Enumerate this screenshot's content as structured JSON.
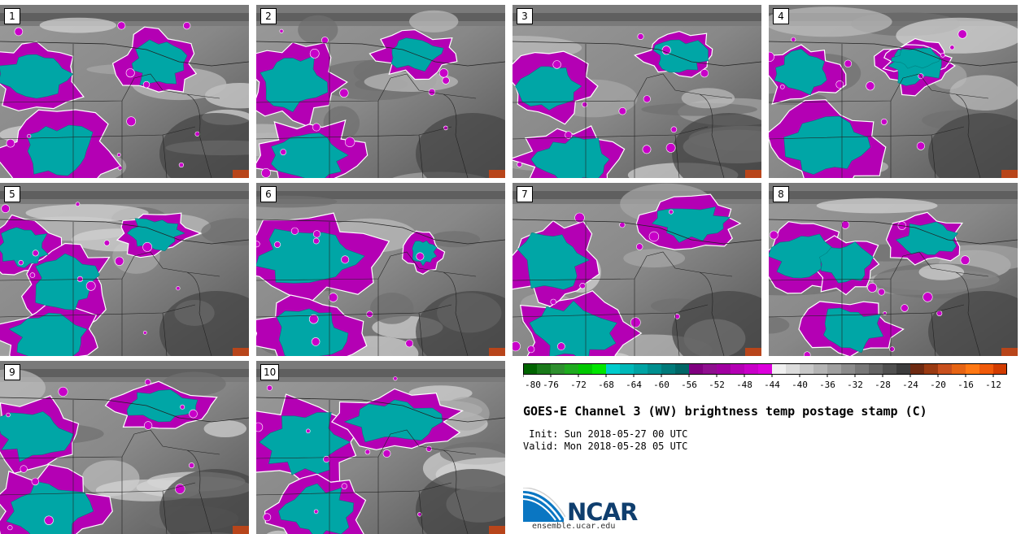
{
  "panels": [
    {
      "label": "1"
    },
    {
      "label": "2"
    },
    {
      "label": "3"
    },
    {
      "label": "4"
    },
    {
      "label": "5"
    },
    {
      "label": "6"
    },
    {
      "label": "7"
    },
    {
      "label": "8"
    },
    {
      "label": "9"
    },
    {
      "label": "10"
    }
  ],
  "colorbar": {
    "colors": [
      "#006400",
      "#1a7a1a",
      "#2e8f2e",
      "#1fab1f",
      "#00c800",
      "#00e600",
      "#00cccc",
      "#00b8b8",
      "#00a3a3",
      "#008f8f",
      "#007a7a",
      "#006666",
      "#800080",
      "#8f0f8f",
      "#a000a0",
      "#b400b4",
      "#c800c8",
      "#dc00dc",
      "#f0f0f0",
      "#dcdcdc",
      "#c8c8c8",
      "#b4b4b4",
      "#a0a0a0",
      "#8c8c8c",
      "#787878",
      "#646464",
      "#505050",
      "#3c3c3c",
      "#6e2a12",
      "#9a3a12",
      "#c8501e",
      "#e66414",
      "#ff7814",
      "#f05a0a",
      "#d23c00"
    ],
    "tick_labels": [
      "-80",
      "-76",
      "-72",
      "-68",
      "-64",
      "-60",
      "-56",
      "-52",
      "-48",
      "-44",
      "-40",
      "-36",
      "-32",
      "-28",
      "-24",
      "-20",
      "-16",
      "-12"
    ]
  },
  "title": "GOES-E Channel 3 (WV) brightness temp postage stamp (C)",
  "init": " Init: Sun 2018-05-27 00 UTC",
  "valid": "Valid: Mon 2018-05-28 05 UTC",
  "logo": {
    "text": "NCAR",
    "url": "ensemble.ucar.edu"
  }
}
